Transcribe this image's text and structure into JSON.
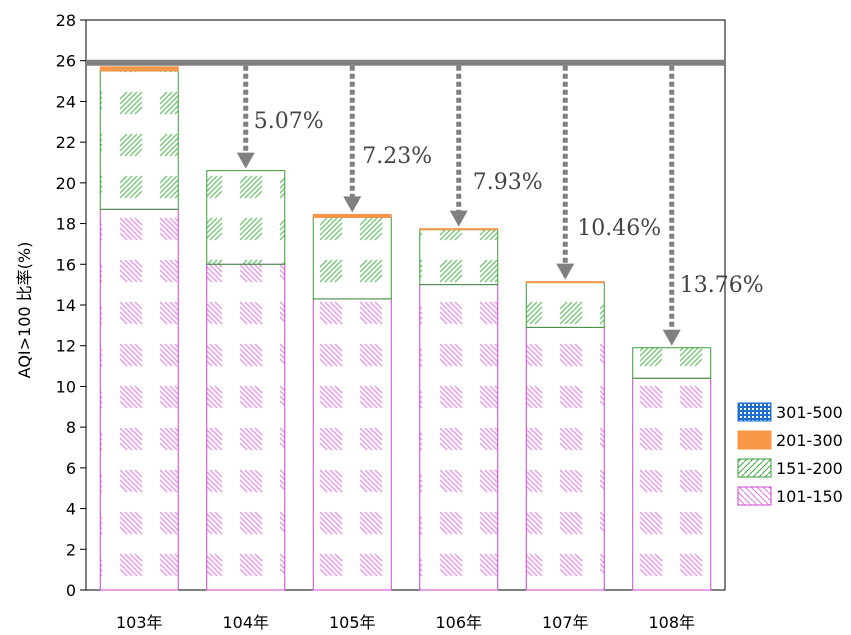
{
  "chart_data": {
    "type": "bar",
    "stacked": true,
    "ylabel": "AQI>100 比率(%)",
    "ylim": [
      0,
      28
    ],
    "yticks": [
      0,
      2,
      4,
      6,
      8,
      10,
      12,
      14,
      16,
      18,
      20,
      22,
      24,
      26,
      28
    ],
    "categories": [
      "103年",
      "104年",
      "105年",
      "106年",
      "107年",
      "108年"
    ],
    "series": [
      {
        "name": "101-150",
        "color": "#e07ae0",
        "values": [
          18.7,
          16.0,
          14.3,
          15.0,
          12.9,
          10.4
        ]
      },
      {
        "name": "151-200",
        "color": "#3aaa3a",
        "values": [
          6.8,
          4.6,
          4.0,
          2.7,
          2.2,
          1.5
        ]
      },
      {
        "name": "201-300",
        "color": "#f79646",
        "values": [
          0.2,
          0.0,
          0.15,
          0.05,
          0.05,
          0.0
        ]
      },
      {
        "name": "301-500",
        "color": "#1f6fd1",
        "values": [
          0,
          0,
          0,
          0,
          0,
          0
        ]
      }
    ],
    "reference_line": {
      "value": 25.9,
      "color": "#808080"
    },
    "reductions": [
      {
        "category": "104年",
        "label": "5.07%"
      },
      {
        "category": "105年",
        "label": "7.23%"
      },
      {
        "category": "106年",
        "label": "7.93%"
      },
      {
        "category": "107年",
        "label": "10.46%"
      },
      {
        "category": "108年",
        "label": "13.76%"
      }
    ],
    "legend_position": "right",
    "legend_order": [
      "301-500",
      "201-300",
      "151-200",
      "101-150"
    ]
  }
}
